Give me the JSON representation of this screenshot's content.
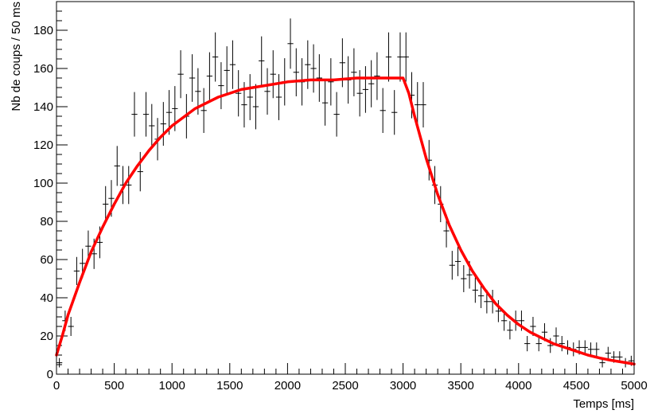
{
  "chart_data": {
    "type": "scatter",
    "title": "",
    "xlabel": "Temps [ms]",
    "ylabel": "Nb de coups / 50 ms",
    "xlim": [
      0,
      5000
    ],
    "ylim": [
      0,
      195
    ],
    "x_ticks": [
      0,
      500,
      1000,
      1500,
      2000,
      2500,
      3000,
      3500,
      4000,
      4500,
      5000
    ],
    "y_ticks": [
      0,
      20,
      40,
      60,
      80,
      100,
      120,
      140,
      160,
      180
    ],
    "grid": false,
    "legend": "none",
    "bin_width": 50,
    "series": [
      {
        "kind": "histogram-points",
        "color": "#000000",
        "x": [
          25,
          75,
          125,
          175,
          225,
          275,
          325,
          375,
          425,
          475,
          525,
          575,
          625,
          675,
          725,
          775,
          825,
          875,
          925,
          975,
          1025,
          1075,
          1125,
          1175,
          1225,
          1275,
          1325,
          1375,
          1425,
          1475,
          1525,
          1575,
          1625,
          1675,
          1725,
          1775,
          1825,
          1875,
          1925,
          1975,
          2025,
          2075,
          2125,
          2175,
          2225,
          2275,
          2325,
          2375,
          2425,
          2475,
          2525,
          2575,
          2625,
          2675,
          2725,
          2775,
          2825,
          2875,
          2925,
          2975,
          3025,
          3075,
          3125,
          3175,
          3225,
          3275,
          3325,
          3375,
          3425,
          3475,
          3525,
          3575,
          3625,
          3675,
          3725,
          3775,
          3825,
          3875,
          3925,
          3975,
          4025,
          4075,
          4125,
          4175,
          4225,
          4275,
          4325,
          4375,
          4425,
          4475,
          4525,
          4575,
          4625,
          4675,
          4725,
          4775,
          4825,
          4875,
          4925,
          4975
        ],
        "y": [
          6,
          28,
          25,
          54,
          58,
          67,
          63,
          69,
          89,
          92,
          109,
          99,
          99,
          136,
          106,
          136,
          130,
          123,
          131,
          137,
          139,
          157,
          135,
          155,
          148,
          138,
          156,
          166,
          151,
          159,
          162,
          147,
          141,
          145,
          140,
          164,
          148,
          157,
          145,
          153,
          173,
          158,
          153,
          162,
          160,
          155,
          142,
          153,
          136,
          163,
          154,
          158,
          147,
          149,
          152,
          156,
          138,
          166,
          137,
          166,
          166,
          146,
          141,
          141,
          112,
          99,
          89,
          75,
          57,
          59,
          50,
          52,
          44,
          41,
          38,
          38,
          33,
          28,
          23,
          28,
          28,
          16,
          25,
          16,
          22,
          15,
          20,
          16,
          14,
          13,
          14,
          14,
          13,
          13,
          6,
          11,
          9,
          9,
          6,
          7
        ]
      },
      {
        "kind": "fit",
        "color": "#ff0000",
        "x": [
          0,
          50,
          100,
          200,
          300,
          400,
          500,
          600,
          700,
          800,
          900,
          1000,
          1200,
          1400,
          1600,
          1800,
          2000,
          2200,
          2400,
          2600,
          2800,
          3000,
          3050,
          3100,
          3150,
          3200,
          3300,
          3400,
          3500,
          3600,
          3700,
          3800,
          3900,
          4000,
          4100,
          4200,
          4300,
          4400,
          4500,
          4600,
          4700,
          4800,
          4900,
          5000
        ],
        "y": [
          10,
          20,
          31,
          48,
          64,
          77,
          89,
          100,
          109,
          117,
          124,
          130,
          139,
          145,
          149,
          151,
          153,
          154,
          154,
          155,
          155,
          155,
          147,
          135,
          124,
          113,
          94,
          78,
          65,
          54,
          45,
          37,
          31,
          26,
          22,
          19,
          16,
          14,
          12,
          10,
          8.5,
          7.3,
          6.3,
          5.3
        ]
      }
    ]
  }
}
